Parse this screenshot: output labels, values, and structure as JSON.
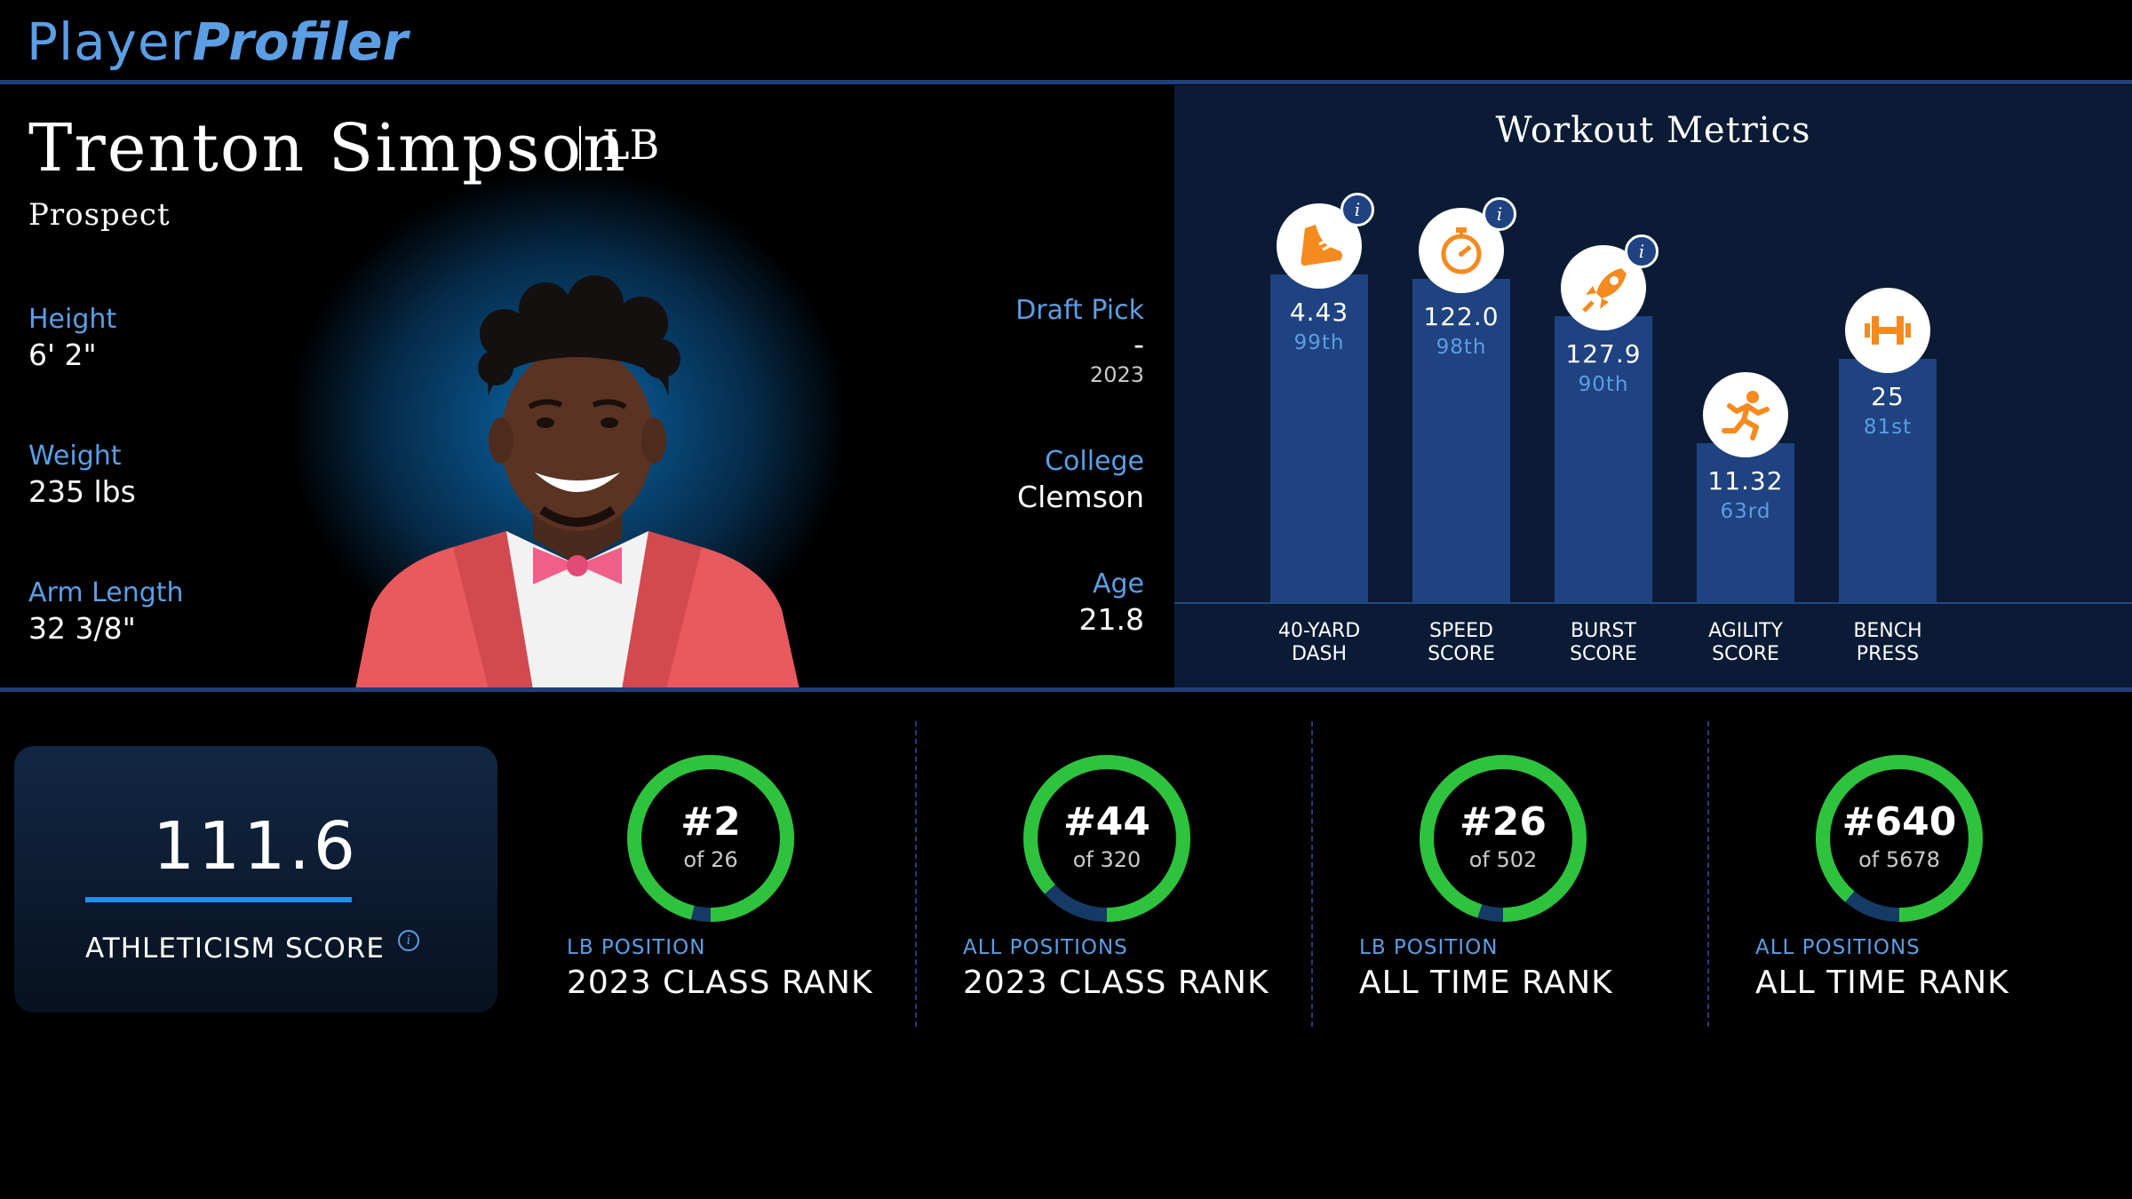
{
  "brand": {
    "part1": "Player",
    "part2": "Profiler"
  },
  "player": {
    "name": "Trenton Simpson",
    "position": "LB",
    "status": "Prospect",
    "height_label": "Height",
    "height": "6' 2\"",
    "weight_label": "Weight",
    "weight": "235 lbs",
    "arm_label": "Arm Length",
    "arm": "32 3/8\"",
    "draft_label": "Draft Pick",
    "draft_pick": "-",
    "draft_year": "2023",
    "college_label": "College",
    "college": "Clemson",
    "age_label": "Age",
    "age": "21.8"
  },
  "workout": {
    "title": "Workout Metrics",
    "metrics": [
      {
        "label_line1": "40-YARD",
        "label_line2": "DASH",
        "value": "4.43",
        "percentile": "99th",
        "percentile_num": 99,
        "icon": "running-shoe-icon",
        "info": true
      },
      {
        "label_line1": "SPEED",
        "label_line2": "SCORE",
        "value": "122.0",
        "percentile": "98th",
        "percentile_num": 98,
        "icon": "stopwatch-icon",
        "info": true
      },
      {
        "label_line1": "BURST",
        "label_line2": "SCORE",
        "value": "127.9",
        "percentile": "90th",
        "percentile_num": 90,
        "icon": "rocket-icon",
        "info": true
      },
      {
        "label_line1": "AGILITY",
        "label_line2": "SCORE",
        "value": "11.32",
        "percentile": "63rd",
        "percentile_num": 63,
        "icon": "running-person-icon",
        "info": false
      },
      {
        "label_line1": "BENCH",
        "label_line2": "PRESS",
        "value": "25",
        "percentile": "81st",
        "percentile_num": 81,
        "icon": "dumbbell-icon",
        "info": false
      }
    ],
    "accent_color": "#f58a1f",
    "info_glyph": "i"
  },
  "athleticism": {
    "score": "111.6",
    "label": "ATHLETICISM SCORE",
    "info_glyph": "i"
  },
  "ranks": [
    {
      "number": "#2",
      "of": "of 26",
      "sub": "LB POSITION",
      "label": "2023 CLASS RANK",
      "rank": 2,
      "total": 26
    },
    {
      "number": "#44",
      "of": "of 320",
      "sub": "ALL POSITIONS",
      "label": "2023 CLASS RANK",
      "rank": 44,
      "total": 320
    },
    {
      "number": "#26",
      "of": "of 502",
      "sub": "LB POSITION",
      "label": "ALL TIME RANK",
      "rank": 26,
      "total": 502
    },
    {
      "number": "#640",
      "of": "of 5678",
      "sub": "ALL POSITIONS",
      "label": "ALL TIME RANK",
      "rank": 640,
      "total": 5678
    }
  ],
  "colors": {
    "ring": "#2fc33d",
    "ring_track": "#163a66",
    "bar": "#1f4280",
    "label_blue": "#5b9ee4"
  }
}
